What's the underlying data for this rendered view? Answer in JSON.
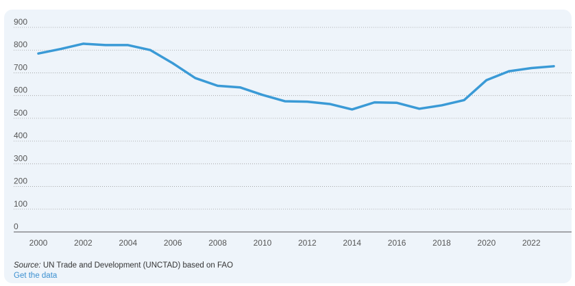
{
  "colors": {
    "line": "#3a9ad6",
    "link": "#3a8fd0"
  },
  "chart_data": {
    "type": "line",
    "title": "",
    "xlabel": "",
    "ylabel": "",
    "x": [
      2000,
      2001,
      2002,
      2003,
      2004,
      2005,
      2006,
      2007,
      2008,
      2009,
      2010,
      2011,
      2012,
      2013,
      2014,
      2015,
      2016,
      2017,
      2018,
      2019,
      2020,
      2021,
      2022,
      2023
    ],
    "series": [
      {
        "values": [
          785,
          805,
          828,
          822,
          822,
          800,
          742,
          677,
          643,
          636,
          603,
          575,
          573,
          563,
          539,
          570,
          568,
          542,
          557,
          580,
          668,
          707,
          721,
          729
        ]
      }
    ],
    "xlim": [
      2000,
      2023
    ],
    "ylim": [
      0,
      900
    ],
    "x_ticks": [
      "2000",
      "2002",
      "2004",
      "2006",
      "2008",
      "2010",
      "2012",
      "2014",
      "2016",
      "2018",
      "2020",
      "2022"
    ],
    "y_ticks": [
      "0",
      "100",
      "200",
      "300",
      "400",
      "500",
      "600",
      "700",
      "800",
      "900"
    ],
    "grid": true,
    "legend": "none"
  },
  "footer": {
    "source_prefix": "Source:",
    "source_text": " UN Trade and Development (UNCTAD) based on FAO",
    "link_label": "Get the data"
  }
}
